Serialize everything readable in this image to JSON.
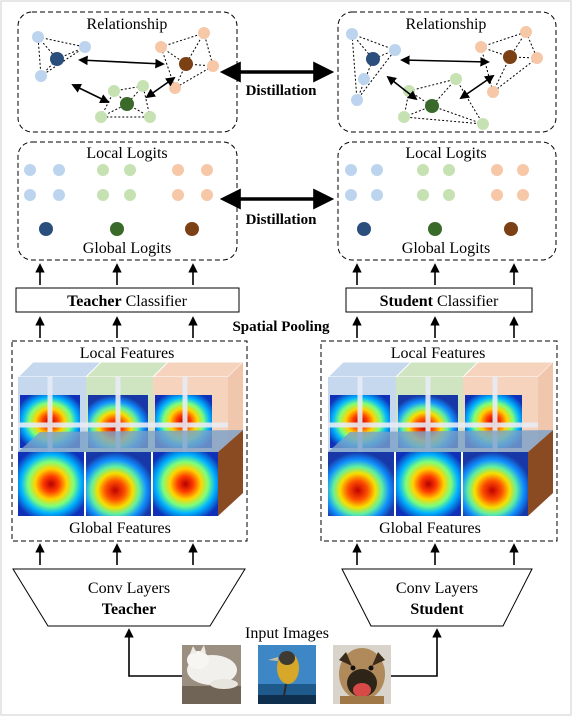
{
  "labels": {
    "relationship": "Relationship",
    "distillation": "Distillation",
    "local_logits": "Local Logits",
    "global_logits": "Global Logits",
    "classifier": "Classifier",
    "spatial_pooling": "Spatial Pooling",
    "local_features": "Local Features",
    "global_features": "Global Features",
    "conv_layers": "Conv Layers",
    "input_images": "Input Images"
  },
  "teacher": {
    "name": "Teacher"
  },
  "student": {
    "name": "Student"
  },
  "colors": {
    "blue_light": "#bcd4ee",
    "blue_dark": "#2b4f7c",
    "green_light": "#c6e2b2",
    "green_dark": "#3a6a2a",
    "orange_light": "#f6c8a8",
    "orange_dark": "#7b4014",
    "slab_blue": "#c5d8ee",
    "slab_green": "#cfe4c0",
    "slab_orange": "#f6d3bc",
    "brown_side": "#8a4a22"
  },
  "input_images": [
    "cat-photo",
    "bird-photo",
    "dog-photo"
  ]
}
